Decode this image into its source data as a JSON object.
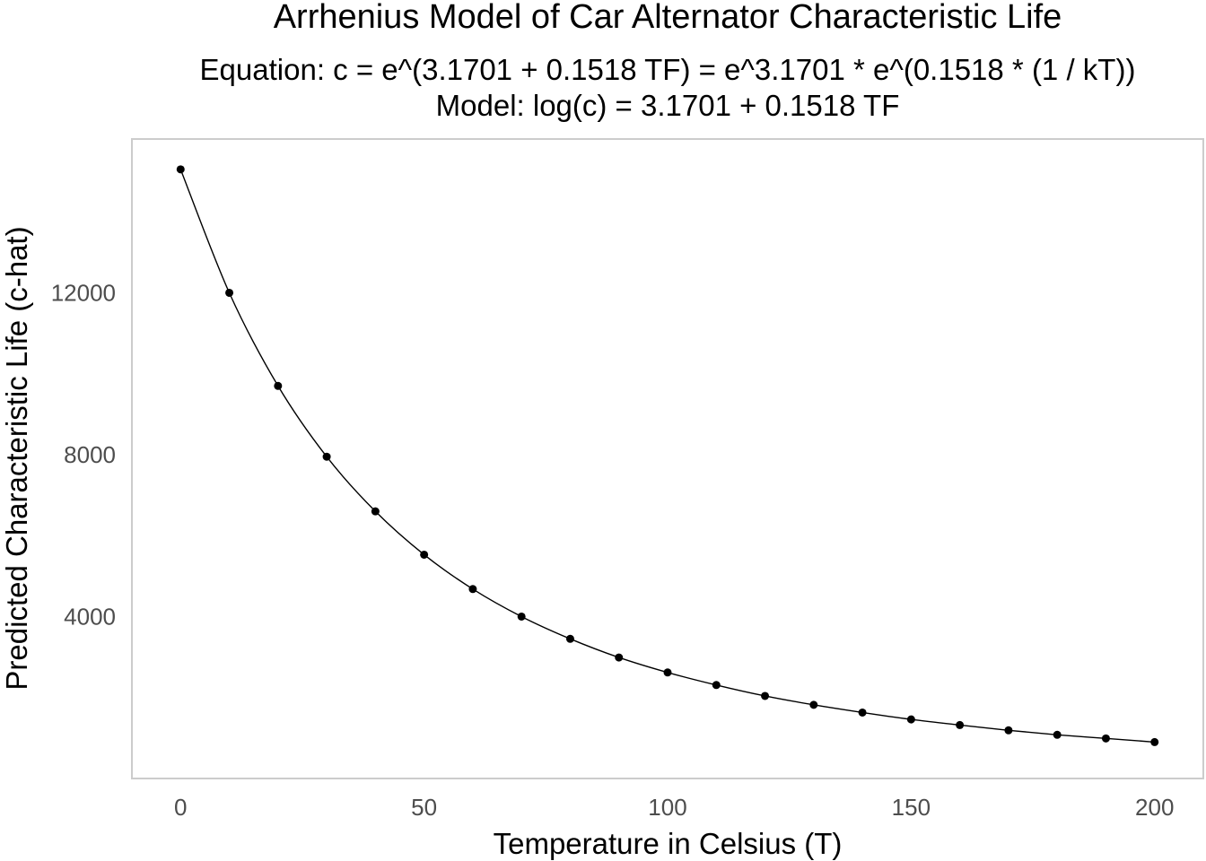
{
  "chart_data": {
    "type": "line",
    "title": "Arrhenius Model of Car Alternator Characteristic Life",
    "subtitle_lines": [
      "Equation:   c = e^(3.1701 + 0.1518 TF) = e^3.1701 * e^(0.1518 * (1 / kT))",
      "Model: log(c) = 3.1701 + 0.1518 TF"
    ],
    "xlabel": "Temperature in Celsius (T)",
    "ylabel": "Predicted Characteristic Life (c-hat)",
    "xlim": [
      -10,
      210
    ],
    "ylim": [
      0,
      15800
    ],
    "x_ticks": [
      0,
      50,
      100,
      150,
      200
    ],
    "x_tick_labels": [
      "0",
      "50",
      "100",
      "150",
      "200"
    ],
    "y_ticks": [
      4000,
      8000,
      12000
    ],
    "y_tick_labels": [
      "4000",
      "8000",
      "12000"
    ],
    "grid": false,
    "series": [
      {
        "x": [
          0,
          10,
          20,
          30,
          40,
          50,
          60,
          70,
          80,
          90,
          100,
          110,
          120,
          130,
          140,
          150,
          160,
          170,
          180,
          190,
          200
        ],
        "y": [
          15050,
          12000,
          9700,
          7950,
          6600,
          5530,
          4680,
          4000,
          3450,
          2990,
          2620,
          2310,
          2040,
          1820,
          1630,
          1460,
          1320,
          1190,
          1080,
          990,
          900
        ]
      }
    ],
    "colors": {
      "line": "#000000",
      "points": "#000000",
      "panel_border": "#cccccc",
      "tick_label": "#4d4d4d"
    }
  }
}
